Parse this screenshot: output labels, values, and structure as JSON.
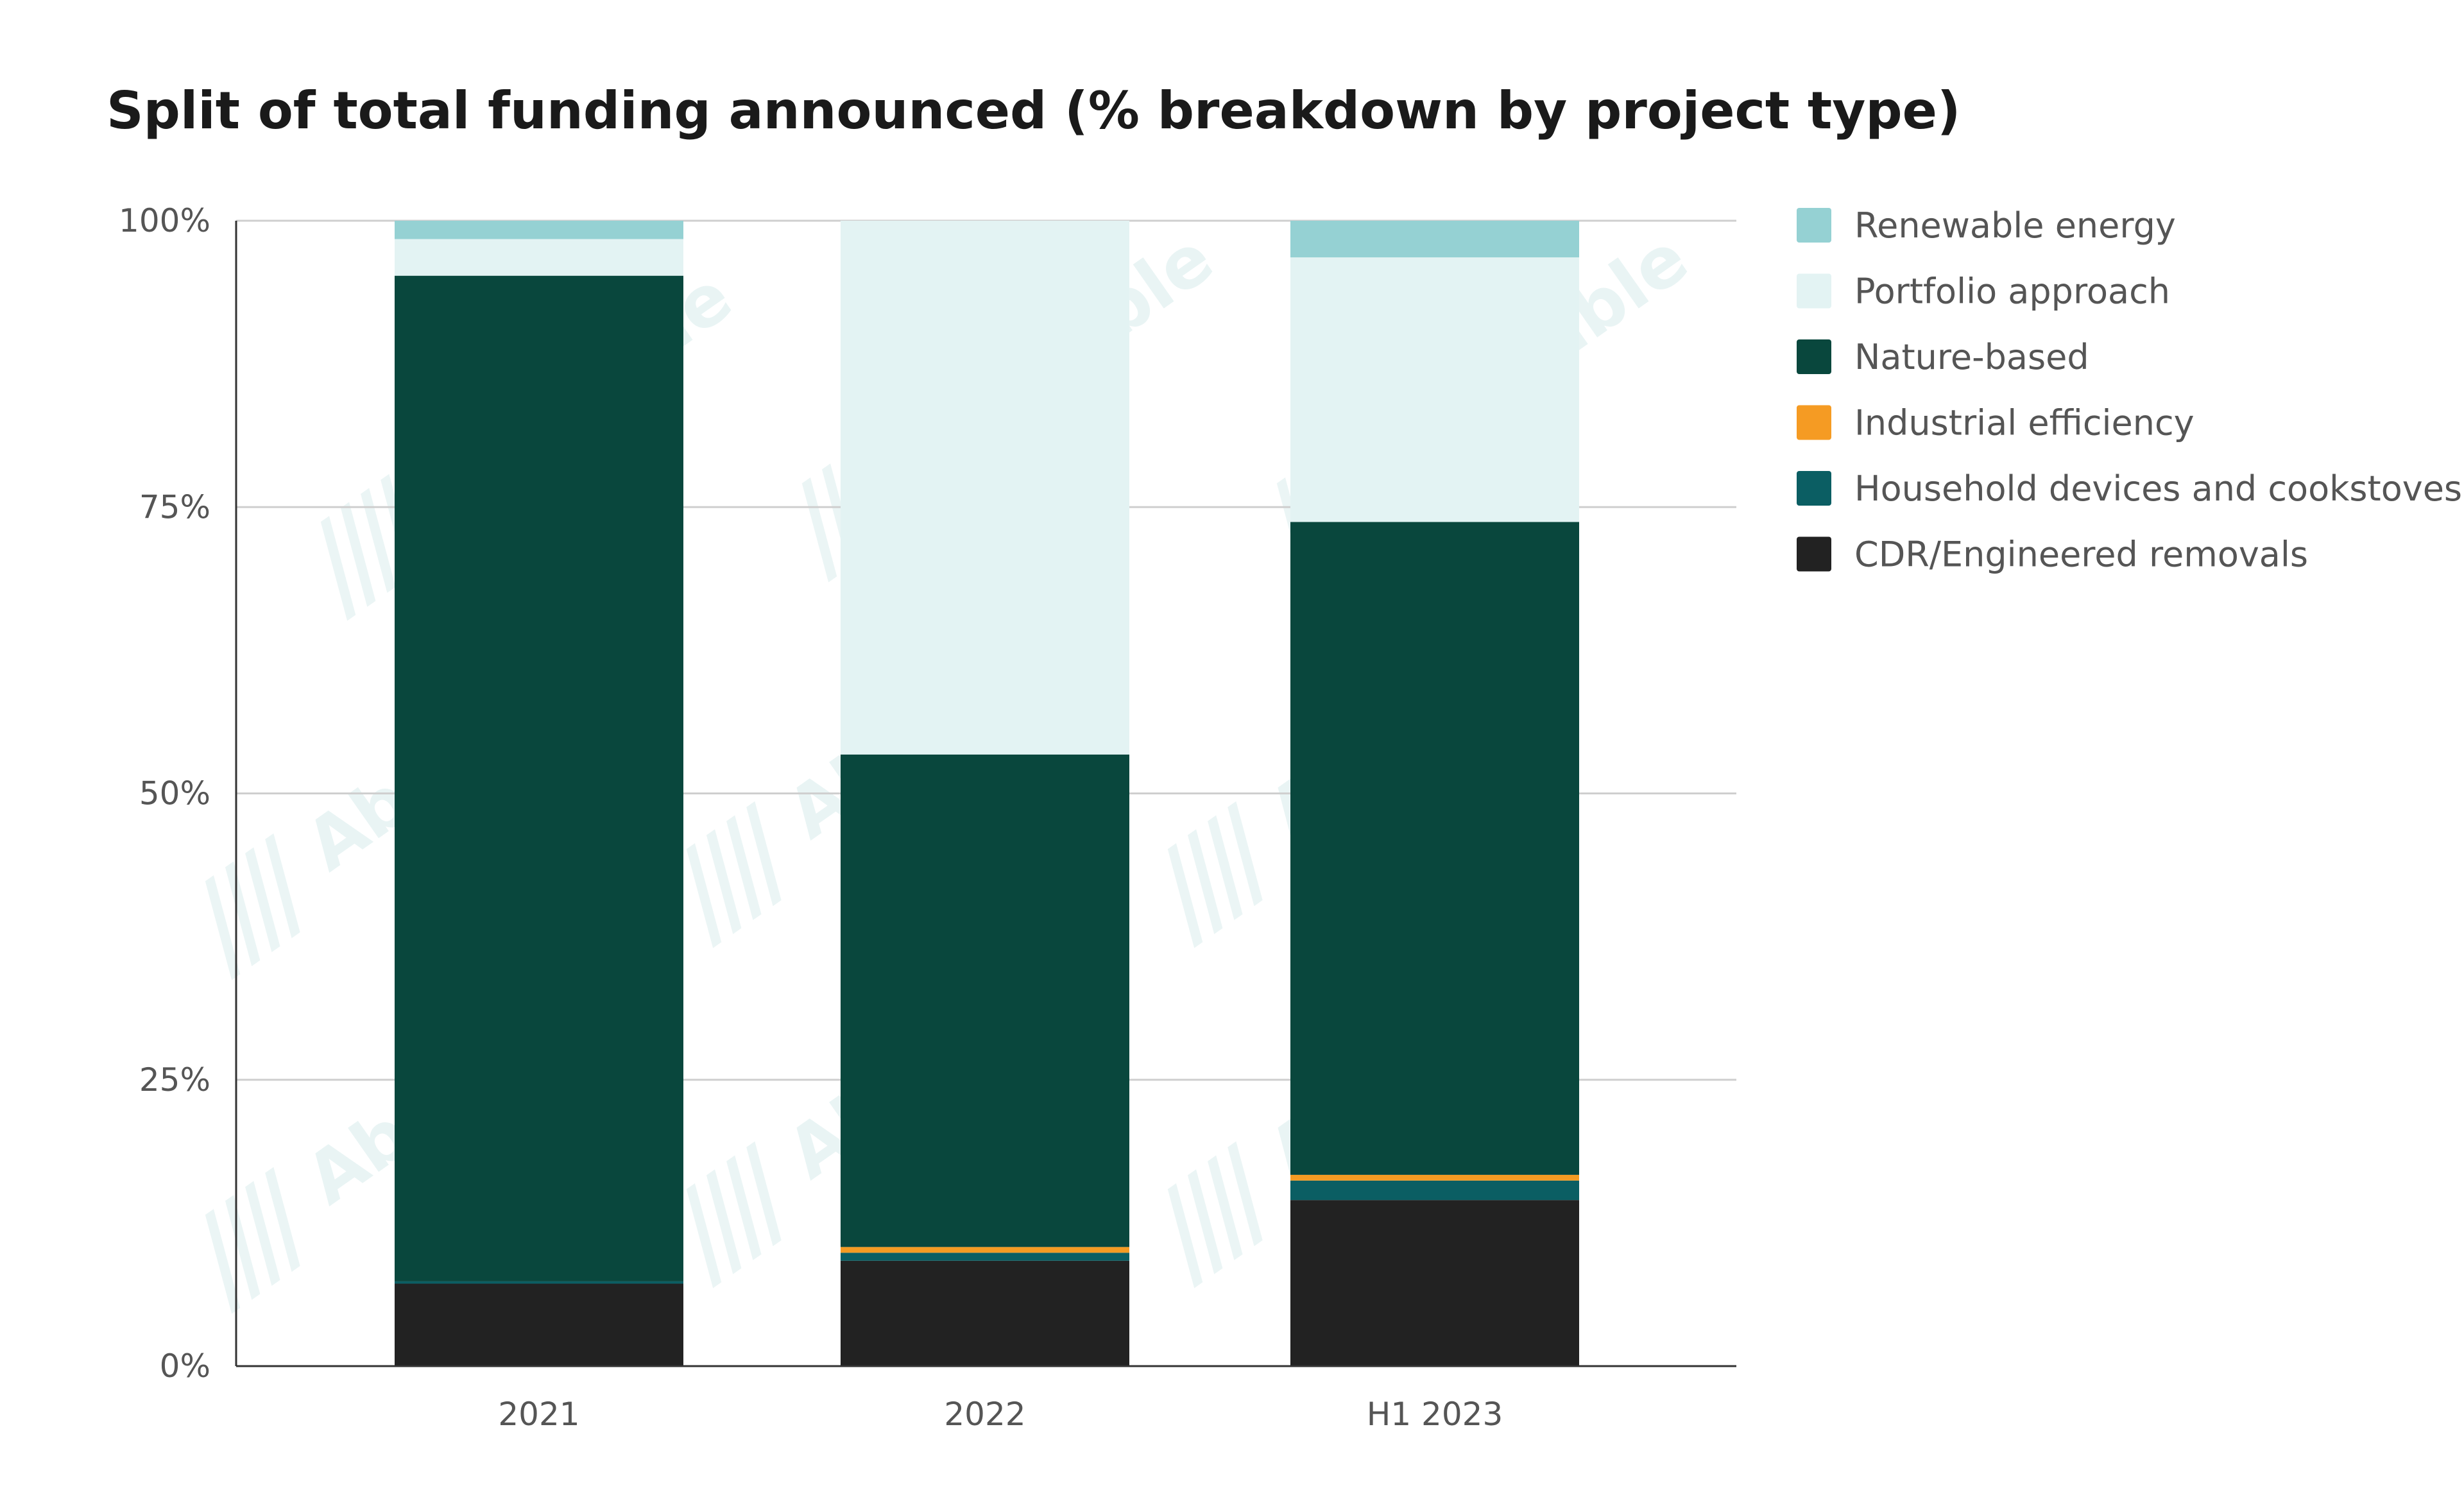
{
  "chart_data": {
    "type": "bar",
    "stacked": true,
    "title": "Split of total funding announced (% breakdown by project type)",
    "categories": [
      "2021",
      "2022",
      "H1 2023"
    ],
    "ylim": [
      0,
      100
    ],
    "yticks": [
      0,
      25,
      50,
      75,
      100
    ],
    "ytick_labels": [
      "0%",
      "25%",
      "50%",
      "75%",
      "100%"
    ],
    "grid": true,
    "legend_position": "right",
    "series": [
      {
        "name": "CDR/Engineered removals",
        "color": "#222222",
        "values": [
          7.2,
          9.2,
          14.5
        ]
      },
      {
        "name": "Household devices and cookstoves",
        "color": "#0b5e63",
        "values": [
          0.2,
          0.7,
          1.7
        ]
      },
      {
        "name": "Industrial efficiency",
        "color": "#f59b23",
        "values": [
          0.0,
          0.5,
          0.5
        ]
      },
      {
        "name": "Nature-based",
        "color": "#09473d",
        "values": [
          87.8,
          43.0,
          57.0
        ]
      },
      {
        "name": "Portfolio approach",
        "color": "#e3f3f3",
        "values": [
          3.2,
          46.6,
          23.1
        ]
      },
      {
        "name": "Renewable energy",
        "color": "#95d1d3",
        "values": [
          1.6,
          0.0,
          3.2
        ]
      }
    ],
    "legend_order": [
      "Renewable energy",
      "Portfolio approach",
      "Nature-based",
      "Industrial efficiency",
      "Household devices and cookstoves",
      "CDR/Engineered removals"
    ]
  },
  "watermark": "Abatable"
}
